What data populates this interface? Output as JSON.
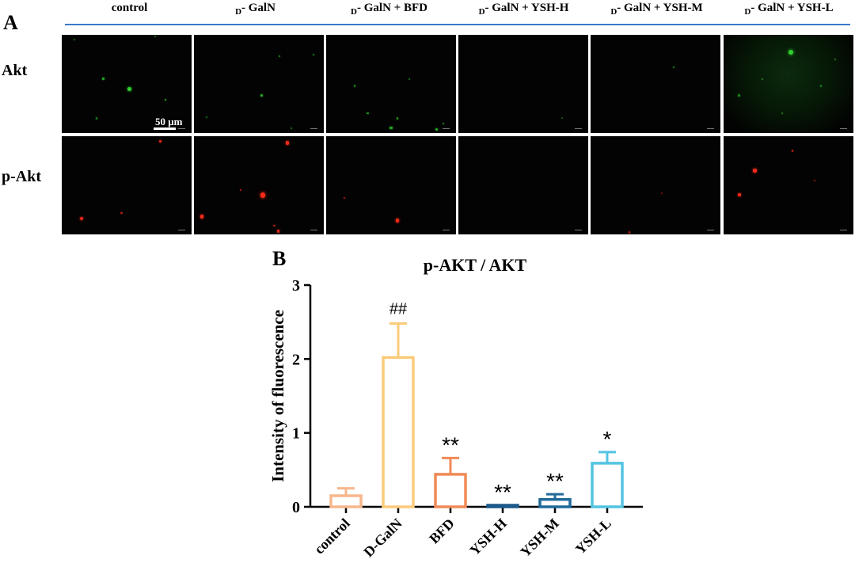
{
  "panel_a": {
    "letter": "A",
    "columns": [
      {
        "pre": "",
        "sub": "",
        "post": "control"
      },
      {
        "pre": "",
        "sub": "D",
        "post": "- GalN"
      },
      {
        "pre": "",
        "sub": "D",
        "post": "- GalN + BFD"
      },
      {
        "pre": "",
        "sub": "D",
        "post": "- GalN + YSH-H"
      },
      {
        "pre": "",
        "sub": "D",
        "post": "- GalN + YSH-M"
      },
      {
        "pre": "",
        "sub": "D",
        "post": "- GalN + YSH-L"
      }
    ],
    "rows": [
      "Akt",
      "p-Akt"
    ],
    "scale_bar_label": "50 μm",
    "colors": {
      "akt_signal": "#2fd12f",
      "pakt_signal": "#ff2a1a",
      "background": "#020302",
      "rule": "#3b78c8"
    }
  },
  "panel_b": {
    "letter": "B"
  },
  "chart_data": {
    "type": "bar",
    "title": "p-AKT / AKT",
    "xlabel": "",
    "ylabel": "Intensity of fluorescence",
    "ylim": [
      0,
      3
    ],
    "yticks": [
      0,
      1,
      2,
      3
    ],
    "categories": [
      "control",
      "D-GalN",
      "BFD",
      "YSH-H",
      "YSH-M",
      "YSH-L"
    ],
    "values": [
      0.15,
      2.02,
      0.44,
      0.02,
      0.1,
      0.59
    ],
    "errors": [
      0.1,
      0.46,
      0.22,
      0.0,
      0.07,
      0.15
    ],
    "annotations": [
      "",
      "##",
      "**",
      "**",
      "**",
      "*"
    ],
    "colors": [
      "#f7b78c",
      "#fccb7a",
      "#f08a57",
      "#1d5a8c",
      "#216a9a",
      "#53c4e2"
    ]
  }
}
